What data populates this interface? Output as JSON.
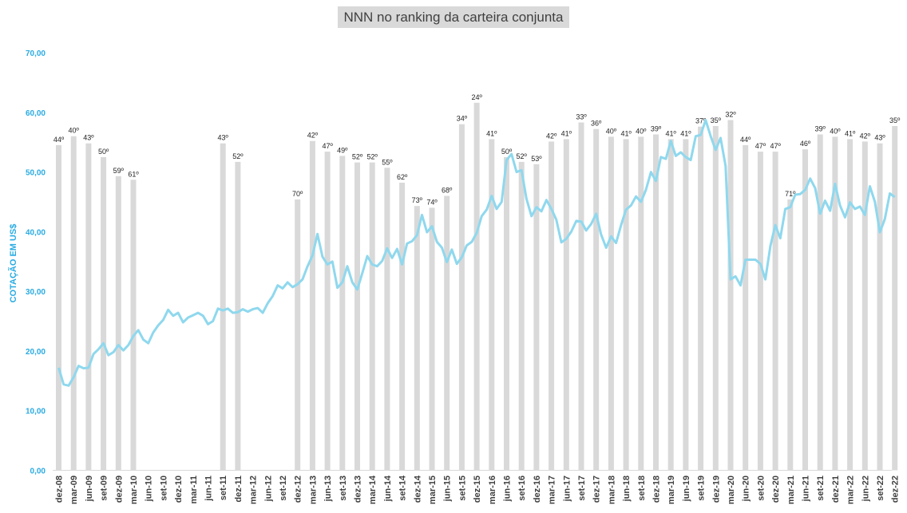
{
  "chart_data": {
    "type": "bar+line",
    "title": "NNN no ranking da carteira conjunta",
    "ylabel": "COTAÇÃO EM US$",
    "ylim": [
      0,
      70
    ],
    "yticks": [
      "0,00",
      "10,00",
      "20,00",
      "30,00",
      "40,00",
      "50,00",
      "60,00",
      "70,00"
    ],
    "xticks": [
      "dez-08",
      "mar-09",
      "jun-09",
      "set-09",
      "dez-09",
      "mar-10",
      "jun-10",
      "set-10",
      "dez-10",
      "mar-11",
      "jun-11",
      "set-11",
      "dez-11",
      "mar-12",
      "jun-12",
      "set-12",
      "dez-12",
      "mar-13",
      "jun-13",
      "set-13",
      "dez-13",
      "mar-14",
      "jun-14",
      "set-14",
      "dez-14",
      "mar-15",
      "jun-15",
      "set-15",
      "dez-15",
      "mar-16",
      "jun-16",
      "set-16",
      "dez-16",
      "mar-17",
      "jun-17",
      "set-17",
      "dez-17",
      "mar-18",
      "jun-18",
      "set-18",
      "dez-18",
      "mar-19",
      "jun-19",
      "set-19",
      "dez-19",
      "mar-20",
      "jun-20",
      "set-20",
      "dez-20",
      "mar-21",
      "jun-21",
      "set-21",
      "dez-21",
      "mar-22",
      "jun-22",
      "set-22",
      "dez-22"
    ],
    "colors": {
      "bar": "#d9d9d9",
      "line": "#8fd8ee",
      "axis_text": "#29abe2"
    },
    "grid": false,
    "series": [
      {
        "kind": "bar",
        "points": [
          [
            0,
            54.5,
            "44º"
          ],
          [
            1,
            56,
            "40º"
          ],
          [
            2,
            54.8,
            "43º"
          ],
          [
            3,
            52.5,
            "50º"
          ],
          [
            4,
            49.3,
            "59º"
          ],
          [
            5,
            48.7,
            "61º"
          ],
          [
            11,
            54.8,
            "43º"
          ],
          [
            12,
            51.7,
            "52º"
          ],
          [
            16,
            45.4,
            "70º"
          ],
          [
            17,
            55.2,
            "42º"
          ],
          [
            18,
            53.4,
            "47º"
          ],
          [
            19,
            52.7,
            "49º"
          ],
          [
            20,
            51.6,
            "52º"
          ],
          [
            21,
            51.6,
            "52º"
          ],
          [
            22,
            50.7,
            "55º"
          ],
          [
            23,
            48.2,
            "62º"
          ],
          [
            24,
            44.3,
            "73º"
          ],
          [
            25,
            44,
            "74º"
          ],
          [
            26,
            46,
            "68º"
          ],
          [
            27,
            58,
            "34º"
          ],
          [
            28,
            61.6,
            "24º"
          ],
          [
            29,
            55.5,
            "41º"
          ],
          [
            30,
            52.5,
            "50º"
          ],
          [
            31,
            51.7,
            "52º"
          ],
          [
            32,
            51.3,
            "53º"
          ],
          [
            33,
            55.1,
            "42º"
          ],
          [
            34,
            55.5,
            "41º"
          ],
          [
            35,
            58.3,
            "33º"
          ],
          [
            36,
            57.2,
            "36º"
          ],
          [
            37,
            55.9,
            "40º"
          ],
          [
            38,
            55.5,
            "41º"
          ],
          [
            39,
            55.9,
            "40º"
          ],
          [
            40,
            56.3,
            "39º"
          ],
          [
            41,
            55.5,
            "41º"
          ],
          [
            42,
            55.5,
            "41º"
          ],
          [
            43,
            57.6,
            "37º"
          ],
          [
            44,
            57.7,
            "35º"
          ],
          [
            45,
            58.7,
            "32º"
          ],
          [
            46,
            54.5,
            "44º"
          ],
          [
            47,
            53.4,
            "47º"
          ],
          [
            48,
            53.4,
            "47º"
          ],
          [
            49,
            45.4,
            "71º"
          ],
          [
            50,
            53.8,
            "46º"
          ],
          [
            51,
            56.3,
            "39º"
          ],
          [
            52,
            55.9,
            "40º"
          ],
          [
            53,
            55.5,
            "41º"
          ],
          [
            54,
            55.1,
            "42º"
          ],
          [
            55,
            54.8,
            "43º"
          ],
          [
            56,
            57.7,
            "35º"
          ]
        ]
      },
      {
        "kind": "line",
        "points": [
          [
            0,
            17.2
          ],
          [
            0.333,
            14.4
          ],
          [
            0.667,
            14.2
          ],
          [
            1,
            15.6
          ],
          [
            1.333,
            17.5
          ],
          [
            1.667,
            17.1
          ],
          [
            2,
            17.2
          ],
          [
            2.333,
            19.5
          ],
          [
            2.667,
            20.3
          ],
          [
            3,
            21.3
          ],
          [
            3.333,
            19.3
          ],
          [
            3.667,
            19.8
          ],
          [
            4,
            21
          ],
          [
            4.333,
            20.1
          ],
          [
            4.667,
            21
          ],
          [
            5,
            22.5
          ],
          [
            5.333,
            23.5
          ],
          [
            5.667,
            21.9
          ],
          [
            6,
            21.3
          ],
          [
            6.333,
            23.1
          ],
          [
            6.667,
            24.3
          ],
          [
            7,
            25.2
          ],
          [
            7.333,
            26.9
          ],
          [
            7.667,
            25.9
          ],
          [
            8,
            26.4
          ],
          [
            8.333,
            24.8
          ],
          [
            8.667,
            25.6
          ],
          [
            9,
            26
          ],
          [
            9.333,
            26.4
          ],
          [
            9.667,
            25.9
          ],
          [
            10,
            24.5
          ],
          [
            10.333,
            25
          ],
          [
            10.667,
            27.1
          ],
          [
            11,
            26.8
          ],
          [
            11.333,
            27.1
          ],
          [
            11.667,
            26.4
          ],
          [
            12,
            26.5
          ],
          [
            12.333,
            27
          ],
          [
            12.667,
            26.6
          ],
          [
            13,
            27
          ],
          [
            13.333,
            27.2
          ],
          [
            13.667,
            26.4
          ],
          [
            14,
            28
          ],
          [
            14.333,
            29.2
          ],
          [
            14.667,
            31
          ],
          [
            15,
            30.5
          ],
          [
            15.333,
            31.5
          ],
          [
            15.667,
            30.7
          ],
          [
            16,
            31.2
          ],
          [
            16.333,
            32
          ],
          [
            16.667,
            34.2
          ],
          [
            17,
            36
          ],
          [
            17.333,
            39.6
          ],
          [
            17.667,
            35.8
          ],
          [
            18,
            34.5
          ],
          [
            18.333,
            35
          ],
          [
            18.667,
            30.6
          ],
          [
            19,
            31.5
          ],
          [
            19.333,
            34.2
          ],
          [
            19.667,
            31.5
          ],
          [
            20,
            30.3
          ],
          [
            20.333,
            33
          ],
          [
            20.667,
            35.9
          ],
          [
            21,
            34.5
          ],
          [
            21.333,
            34.2
          ],
          [
            21.667,
            35.1
          ],
          [
            22,
            37.2
          ],
          [
            22.333,
            35.6
          ],
          [
            22.667,
            37.1
          ],
          [
            23,
            34.5
          ],
          [
            23.333,
            38
          ],
          [
            23.667,
            38.4
          ],
          [
            24,
            39.4
          ],
          [
            24.333,
            42.8
          ],
          [
            24.667,
            39.9
          ],
          [
            25,
            40.9
          ],
          [
            25.333,
            38.3
          ],
          [
            25.667,
            37.3
          ],
          [
            26,
            34.9
          ],
          [
            26.333,
            37
          ],
          [
            26.667,
            34.6
          ],
          [
            27,
            35.7
          ],
          [
            27.333,
            37.7
          ],
          [
            27.667,
            38.3
          ],
          [
            28,
            39.8
          ],
          [
            28.333,
            42.6
          ],
          [
            28.667,
            43.7
          ],
          [
            29,
            46
          ],
          [
            29.333,
            43.8
          ],
          [
            29.667,
            45
          ],
          [
            30,
            52
          ],
          [
            30.333,
            53
          ],
          [
            30.667,
            50
          ],
          [
            31,
            50.3
          ],
          [
            31.333,
            45.5
          ],
          [
            31.667,
            42.6
          ],
          [
            32,
            44.1
          ],
          [
            32.333,
            43.4
          ],
          [
            32.667,
            45.3
          ],
          [
            33,
            43.8
          ],
          [
            33.333,
            42
          ],
          [
            33.667,
            38.2
          ],
          [
            34,
            38.8
          ],
          [
            34.333,
            40
          ],
          [
            34.667,
            41.8
          ],
          [
            35,
            41.7
          ],
          [
            35.333,
            40.2
          ],
          [
            35.667,
            41.3
          ],
          [
            36,
            43
          ],
          [
            36.333,
            39.5
          ],
          [
            36.667,
            37.3
          ],
          [
            37,
            39.2
          ],
          [
            37.333,
            38.1
          ],
          [
            37.667,
            41.1
          ],
          [
            38,
            43.7
          ],
          [
            38.333,
            44.4
          ],
          [
            38.667,
            45.9
          ],
          [
            39,
            45
          ],
          [
            39.333,
            47
          ],
          [
            39.667,
            50
          ],
          [
            40,
            48.5
          ],
          [
            40.333,
            52.5
          ],
          [
            40.667,
            52.2
          ],
          [
            41,
            55.2
          ],
          [
            41.333,
            52.7
          ],
          [
            41.667,
            53.3
          ],
          [
            42,
            52.5
          ],
          [
            42.333,
            52
          ],
          [
            42.667,
            56
          ],
          [
            43,
            56.2
          ],
          [
            43.333,
            58.7
          ],
          [
            43.667,
            56
          ],
          [
            44,
            53.7
          ],
          [
            44.333,
            55.7
          ],
          [
            44.667,
            51
          ],
          [
            45,
            32
          ],
          [
            45.333,
            32.5
          ],
          [
            45.667,
            31
          ],
          [
            46,
            35.3
          ],
          [
            46.333,
            35.3
          ],
          [
            46.667,
            35.3
          ],
          [
            47,
            34.6
          ],
          [
            47.333,
            32
          ],
          [
            47.667,
            37.6
          ],
          [
            48,
            41.1
          ],
          [
            48.333,
            38.9
          ],
          [
            48.667,
            43.8
          ],
          [
            49,
            44.1
          ],
          [
            49.333,
            46.2
          ],
          [
            49.667,
            46.3
          ],
          [
            50,
            47
          ],
          [
            50.333,
            48.9
          ],
          [
            50.667,
            47.3
          ],
          [
            51,
            43
          ],
          [
            51.333,
            45.2
          ],
          [
            51.667,
            43.5
          ],
          [
            52,
            48
          ],
          [
            52.333,
            44.4
          ],
          [
            52.667,
            42.4
          ],
          [
            53,
            44.9
          ],
          [
            53.333,
            43.8
          ],
          [
            53.667,
            44.2
          ],
          [
            54,
            42.8
          ],
          [
            54.333,
            47.6
          ],
          [
            54.667,
            45
          ],
          [
            55,
            39.9
          ],
          [
            55.333,
            42.1
          ],
          [
            55.667,
            46.4
          ],
          [
            56,
            45.8
          ]
        ]
      }
    ]
  }
}
